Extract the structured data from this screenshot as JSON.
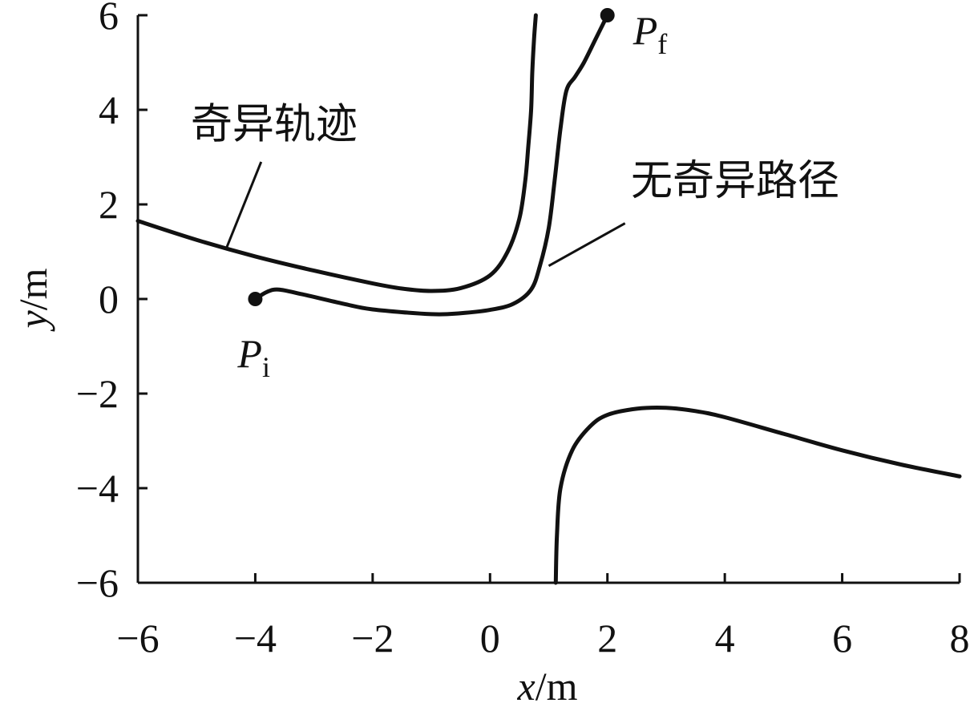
{
  "chart_data": {
    "type": "line",
    "title": "",
    "xlabel": {
      "var": "x",
      "unit": "/m"
    },
    "ylabel": {
      "var": "y",
      "unit": "/m"
    },
    "xlim": [
      -6,
      8
    ],
    "ylim": [
      -6,
      6
    ],
    "xticks": [
      -6,
      -4,
      -2,
      0,
      2,
      4,
      6,
      8
    ],
    "yticks": [
      -6,
      -4,
      -2,
      0,
      2,
      4,
      6
    ],
    "xtick_labels": [
      "−6",
      "−4",
      "−2",
      "0",
      "2",
      "4",
      "6",
      "8"
    ],
    "ytick_labels": [
      "−6",
      "−4",
      "−2",
      "0",
      "2",
      "4",
      "6"
    ],
    "grid": false,
    "series": [
      {
        "name": "奇异轨迹",
        "segment": "upper",
        "x": [
          -6,
          -5,
          -4,
          -3,
          -2,
          -1.5,
          -1,
          -0.5,
          0,
          0.3,
          0.5,
          0.6,
          0.65,
          0.7,
          0.72,
          0.75,
          0.78
        ],
        "y": [
          1.65,
          1.25,
          0.9,
          0.6,
          0.33,
          0.22,
          0.17,
          0.23,
          0.5,
          1.0,
          1.7,
          2.5,
          3.2,
          4.0,
          4.8,
          5.5,
          6.0
        ]
      },
      {
        "name": "奇异轨迹",
        "segment": "lower",
        "x": [
          1.12,
          1.14,
          1.2,
          1.4,
          1.7,
          2.0,
          2.5,
          3.0,
          3.5,
          4.0,
          5.0,
          6.0,
          7.0,
          8.0
        ],
        "y": [
          -6.0,
          -5.0,
          -4.0,
          -3.2,
          -2.7,
          -2.45,
          -2.32,
          -2.3,
          -2.37,
          -2.5,
          -2.85,
          -3.2,
          -3.5,
          -3.75
        ]
      },
      {
        "name": "无奇异路径",
        "x": [
          -4.0,
          -3.8,
          -3.6,
          -3.2,
          -2.5,
          -2.0,
          -1.0,
          -0.5,
          0.0,
          0.4,
          0.7,
          0.85,
          1.0,
          1.1,
          1.2,
          1.3,
          1.45,
          1.6,
          1.8,
          2.0
        ],
        "y": [
          0.0,
          0.15,
          0.2,
          0.1,
          -0.1,
          -0.22,
          -0.32,
          -0.3,
          -0.23,
          -0.1,
          0.2,
          0.7,
          1.5,
          2.5,
          3.6,
          4.4,
          4.7,
          5.0,
          5.5,
          6.0
        ]
      }
    ],
    "points": [
      {
        "label": "P",
        "sub": "i",
        "x": -4.0,
        "y": 0.0
      },
      {
        "label": "P",
        "sub": "f",
        "x": 2.0,
        "y": 6.0
      }
    ],
    "annotations": [
      {
        "text": "奇异轨迹",
        "text_at": [
          -5.1,
          3.4
        ],
        "leader_from": [
          -3.9,
          2.9
        ],
        "leader_to": [
          -4.5,
          1.05
        ]
      },
      {
        "text": "无奇异路径",
        "text_at": [
          2.4,
          2.2
        ],
        "leader_from": [
          2.3,
          1.6
        ],
        "leader_to": [
          1.0,
          0.7
        ]
      }
    ]
  }
}
